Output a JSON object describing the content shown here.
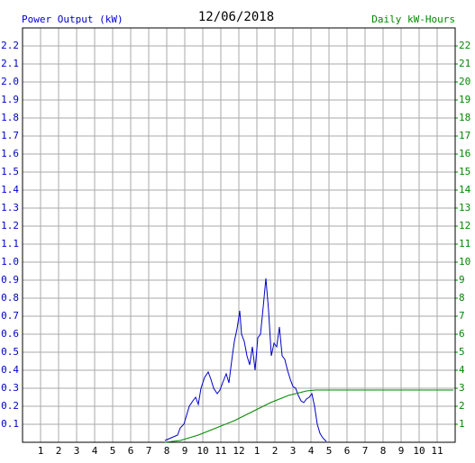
{
  "chart_data": {
    "type": "line",
    "title": "12/06/2018",
    "y_label": "Power Output (kW)",
    "y2_label": "Daily kW-Hours",
    "xlim": [
      0,
      24
    ],
    "xticks": [
      1,
      2,
      3,
      4,
      5,
      6,
      7,
      8,
      9,
      10,
      11,
      12,
      {
        "value": 13,
        "label": "1"
      },
      {
        "value": 14,
        "label": "2"
      },
      {
        "value": 15,
        "label": "3"
      },
      {
        "value": 16,
        "label": "4"
      },
      {
        "value": 17,
        "label": "5"
      },
      {
        "value": 18,
        "label": "6"
      },
      {
        "value": 19,
        "label": "7"
      },
      {
        "value": 20,
        "label": "8"
      },
      {
        "value": 21,
        "label": "9"
      },
      {
        "value": 22,
        "label": "10"
      },
      {
        "value": 23,
        "label": "11"
      }
    ],
    "ylim": [
      0,
      2.3
    ],
    "yticks": [
      0.1,
      0.2,
      0.3,
      0.4,
      0.5,
      0.6,
      0.7,
      0.8,
      0.9,
      {
        "value": 1,
        "label": "1.0"
      },
      1.1,
      1.2,
      1.3,
      1.4,
      1.5,
      1.6,
      1.7,
      1.8,
      1.9,
      {
        "value": 2,
        "label": "2.0"
      },
      2.1,
      2.2
    ],
    "y2lim": [
      0,
      23
    ],
    "y2ticks": [
      1,
      2,
      3,
      4,
      5,
      6,
      7,
      8,
      9,
      10,
      11,
      12,
      13,
      14,
      15,
      16,
      17,
      18,
      19,
      20,
      21,
      22
    ],
    "grid": true,
    "series": [
      {
        "name": "Power Output (kW)",
        "color": "#0000cc",
        "x": [
          7.9,
          8.25,
          8.6,
          8.75,
          8.95,
          9.1,
          9.25,
          9.45,
          9.6,
          9.75,
          9.9,
          10.1,
          10.3,
          10.45,
          10.6,
          10.8,
          10.95,
          11.1,
          11.3,
          11.45,
          11.6,
          11.75,
          11.9,
          12.05,
          12.15,
          12.3,
          12.45,
          12.6,
          12.75,
          12.9,
          13.05,
          13.2,
          13.35,
          13.5,
          13.65,
          13.8,
          13.95,
          14.1,
          14.25,
          14.4,
          14.55,
          14.7,
          14.85,
          15,
          15.15,
          15.3,
          15.45,
          15.6,
          15.75,
          15.9,
          16.05,
          16.2,
          16.35,
          16.5,
          16.65,
          16.85
        ],
        "values": [
          0.01,
          0.025,
          0.04,
          0.08,
          0.1,
          0.15,
          0.2,
          0.23,
          0.25,
          0.21,
          0.3,
          0.36,
          0.39,
          0.35,
          0.3,
          0.27,
          0.29,
          0.33,
          0.38,
          0.33,
          0.45,
          0.56,
          0.63,
          0.73,
          0.6,
          0.56,
          0.48,
          0.43,
          0.53,
          0.4,
          0.58,
          0.6,
          0.75,
          0.91,
          0.73,
          0.48,
          0.55,
          0.53,
          0.64,
          0.48,
          0.46,
          0.4,
          0.35,
          0.31,
          0.3,
          0.26,
          0.23,
          0.22,
          0.24,
          0.25,
          0.27,
          0.2,
          0.1,
          0.05,
          0.025,
          0.005
        ]
      },
      {
        "name": "Daily kW-Hours",
        "color": "#008800",
        "axis": "y2",
        "x": [
          7.9,
          8.75,
          9.75,
          10.75,
          11.75,
          12.75,
          13.75,
          14.75,
          15.75,
          16.25,
          23.9
        ],
        "values": [
          0,
          0.1,
          0.4,
          0.8,
          1.2,
          1.7,
          2.2,
          2.6,
          2.85,
          2.9,
          2.9
        ]
      }
    ]
  }
}
